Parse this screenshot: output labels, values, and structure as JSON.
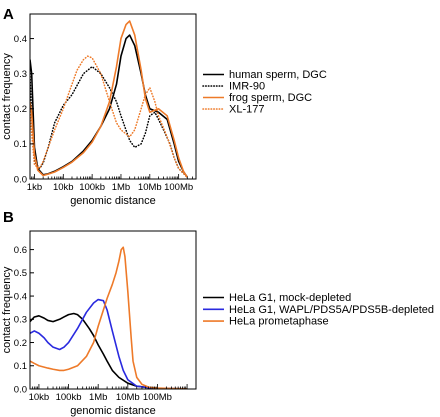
{
  "chart_data": [
    {
      "panel": "A",
      "type": "line",
      "xlabel": "genomic distance",
      "ylabel": "contact frequency",
      "x_scale": "log",
      "xlim": [
        700,
        400000000
      ],
      "ylim": [
        0,
        0.47
      ],
      "x_ticks": [
        {
          "value": 1000,
          "label": "1kb"
        },
        {
          "value": 10000,
          "label": "10kb"
        },
        {
          "value": 100000,
          "label": "100kb"
        },
        {
          "value": 1000000,
          "label": "1Mb"
        },
        {
          "value": 10000000,
          "label": "10Mb"
        },
        {
          "value": 100000000,
          "label": "100Mb"
        }
      ],
      "y_ticks": [
        0,
        0.1,
        0.2,
        0.3,
        0.4
      ],
      "legend_position": "right",
      "series": [
        {
          "name": "human sperm, DGC",
          "color": "#000000",
          "style": "solid",
          "x": [
            700,
            800,
            1000,
            1300,
            2000,
            3000,
            5000,
            10000,
            20000,
            50000,
            100000,
            200000,
            400000,
            700000,
            1000000,
            1500000,
            2000000,
            3000000,
            5000000,
            7000000,
            10000000,
            20000000,
            40000000,
            70000000,
            100000000,
            150000000,
            200000000
          ],
          "y": [
            0.34,
            0.3,
            0.09,
            0.03,
            0.012,
            0.015,
            0.022,
            0.035,
            0.05,
            0.08,
            0.11,
            0.15,
            0.2,
            0.27,
            0.35,
            0.4,
            0.41,
            0.38,
            0.3,
            0.24,
            0.2,
            0.19,
            0.17,
            0.1,
            0.05,
            0.02,
            0.005
          ]
        },
        {
          "name": "IMR-90",
          "color": "#000000",
          "style": "dotted",
          "x": [
            700,
            800,
            1000,
            1500,
            2000,
            3000,
            5000,
            10000,
            20000,
            50000,
            100000,
            200000,
            400000,
            700000,
            1000000,
            2000000,
            3000000,
            5000000,
            7000000,
            10000000,
            15000000,
            20000000,
            30000000,
            50000000,
            70000000,
            100000000,
            200000000
          ],
          "y": [
            0.3,
            0.18,
            0.05,
            0.03,
            0.045,
            0.09,
            0.16,
            0.21,
            0.24,
            0.3,
            0.32,
            0.3,
            0.26,
            0.22,
            0.18,
            0.11,
            0.09,
            0.1,
            0.13,
            0.18,
            0.19,
            0.17,
            0.14,
            0.1,
            0.06,
            0.03,
            0.005
          ]
        },
        {
          "name": "frog sperm, DGC",
          "color": "#ee7a29",
          "style": "solid",
          "x": [
            700,
            800,
            1000,
            1300,
            2000,
            3000,
            5000,
            10000,
            20000,
            50000,
            100000,
            200000,
            400000,
            700000,
            1000000,
            1500000,
            2000000,
            3000000,
            5000000,
            7000000,
            10000000,
            20000000,
            40000000,
            70000000,
            100000000,
            150000000,
            200000000
          ],
          "y": [
            0.22,
            0.19,
            0.07,
            0.025,
            0.01,
            0.014,
            0.02,
            0.033,
            0.048,
            0.075,
            0.105,
            0.15,
            0.22,
            0.32,
            0.4,
            0.44,
            0.45,
            0.41,
            0.31,
            0.23,
            0.19,
            0.2,
            0.18,
            0.11,
            0.06,
            0.02,
            0.005
          ]
        },
        {
          "name": "XL-177",
          "color": "#ee7a29",
          "style": "dotted",
          "x": [
            700,
            800,
            1000,
            1500,
            2000,
            3000,
            5000,
            10000,
            20000,
            30000,
            50000,
            70000,
            100000,
            200000,
            400000,
            700000,
            1000000,
            2000000,
            3000000,
            5000000,
            7000000,
            10000000,
            15000000,
            20000000,
            40000000,
            70000000,
            100000000,
            200000000
          ],
          "y": [
            0.2,
            0.13,
            0.04,
            0.03,
            0.05,
            0.09,
            0.14,
            0.2,
            0.27,
            0.31,
            0.34,
            0.35,
            0.345,
            0.3,
            0.22,
            0.16,
            0.14,
            0.12,
            0.14,
            0.2,
            0.24,
            0.26,
            0.22,
            0.18,
            0.12,
            0.06,
            0.03,
            0.005
          ]
        }
      ]
    },
    {
      "panel": "B",
      "type": "line",
      "xlabel": "genomic distance",
      "ylabel": "contact frequency",
      "x_scale": "log",
      "xlim": [
        5000,
        2000000000
      ],
      "ylim": [
        0,
        0.68
      ],
      "x_ticks": [
        {
          "value": 10000,
          "label": "10kb"
        },
        {
          "value": 100000,
          "label": "100kb"
        },
        {
          "value": 1000000,
          "label": "1Mb"
        },
        {
          "value": 10000000,
          "label": "10Mb"
        },
        {
          "value": 100000000,
          "label": "100Mb"
        }
      ],
      "y_ticks": [
        0,
        0.1,
        0.2,
        0.3,
        0.4,
        0.5,
        0.6
      ],
      "legend_position": "right",
      "series": [
        {
          "name": "HeLa G1, mock-depleted",
          "color": "#000000",
          "style": "solid",
          "x": [
            5000,
            7000,
            10000,
            15000,
            20000,
            30000,
            50000,
            70000,
            100000,
            150000,
            200000,
            300000,
            500000,
            700000,
            1000000,
            1500000,
            2000000,
            3000000,
            5000000,
            10000000,
            20000000,
            50000000,
            100000000,
            300000000,
            1000000000
          ],
          "y": [
            0.29,
            0.31,
            0.315,
            0.305,
            0.295,
            0.29,
            0.3,
            0.31,
            0.32,
            0.325,
            0.32,
            0.3,
            0.26,
            0.23,
            0.19,
            0.15,
            0.12,
            0.08,
            0.05,
            0.025,
            0.012,
            0.006,
            0.003,
            0.0015,
            0.001
          ]
        },
        {
          "name": "HeLa G1, WAPL/PDS5A/PDS5B-depleted",
          "color": "#2a2adf",
          "style": "solid",
          "x": [
            5000,
            7000,
            10000,
            15000,
            20000,
            30000,
            50000,
            70000,
            100000,
            200000,
            400000,
            700000,
            1000000,
            1500000,
            2000000,
            3000000,
            5000000,
            7000000,
            10000000,
            20000000,
            50000000,
            100000000,
            300000000,
            1000000000
          ],
          "y": [
            0.24,
            0.25,
            0.24,
            0.22,
            0.2,
            0.18,
            0.17,
            0.18,
            0.2,
            0.26,
            0.33,
            0.37,
            0.385,
            0.38,
            0.34,
            0.25,
            0.14,
            0.08,
            0.04,
            0.012,
            0.006,
            0.003,
            0.0015,
            0.001
          ]
        },
        {
          "name": "HeLa prometaphase",
          "color": "#ee7a29",
          "style": "solid",
          "x": [
            5000,
            7000,
            10000,
            20000,
            30000,
            50000,
            70000,
            100000,
            200000,
            400000,
            700000,
            1000000,
            2000000,
            3000000,
            4000000,
            5000000,
            6000000,
            7000000,
            8000000,
            10000000,
            13000000,
            15000000,
            20000000,
            30000000,
            50000000,
            100000000,
            300000000,
            1000000000
          ],
          "y": [
            0.12,
            0.11,
            0.1,
            0.09,
            0.085,
            0.08,
            0.08,
            0.085,
            0.1,
            0.14,
            0.2,
            0.27,
            0.39,
            0.45,
            0.5,
            0.55,
            0.6,
            0.61,
            0.57,
            0.42,
            0.22,
            0.12,
            0.05,
            0.02,
            0.008,
            0.004,
            0.002,
            0.001
          ]
        }
      ]
    }
  ]
}
